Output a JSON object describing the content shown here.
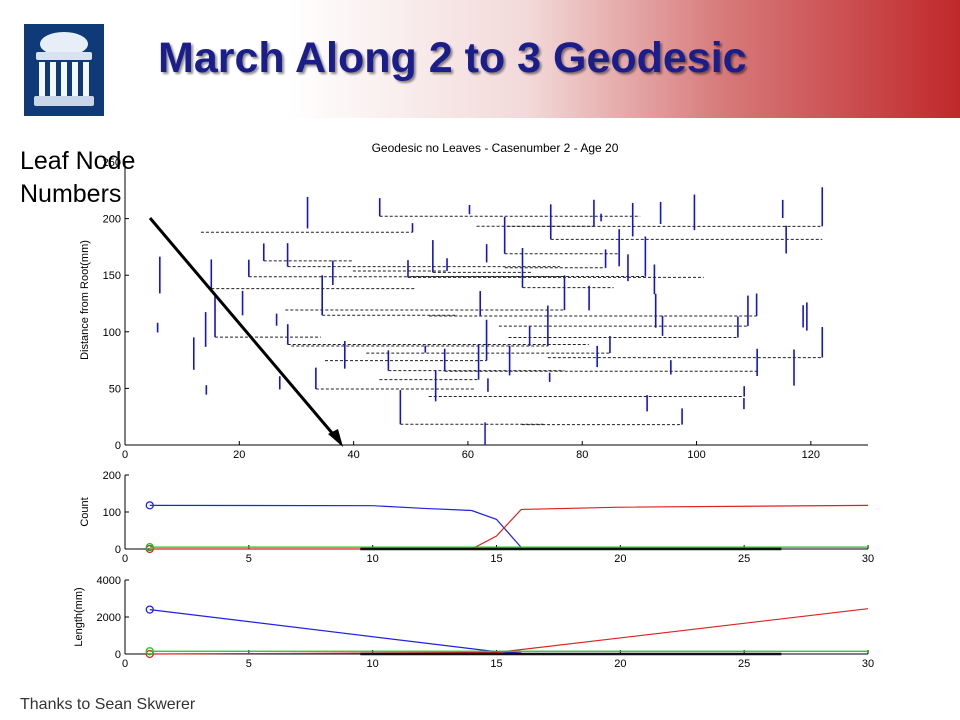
{
  "slide": {
    "title": "March Along 2 to 3 Geodesic",
    "annotation_line1": "Leaf Node",
    "annotation_line2": "Numbers",
    "credit": "Thanks to Sean Skwerer",
    "logo_icon": "old-well-icon",
    "colors": {
      "title": "#1a1d8c",
      "banner_red": "#c0282b"
    }
  },
  "chart_data": [
    {
      "type": "dendrogram",
      "title": "Geodesic no Leaves - Casenumber 2 - Age 20",
      "xlabel": "",
      "ylabel": "Distance from Root(mm)",
      "xlim": [
        0,
        130
      ],
      "ylim": [
        0,
        250
      ],
      "xticks": [
        0,
        20,
        40,
        60,
        80,
        100,
        120
      ],
      "yticks": [
        0,
        50,
        100,
        150,
        200,
        250
      ],
      "color": "#1515c8",
      "note": "tree drawn with solid vertical branches and dashed horizontal links"
    },
    {
      "type": "line",
      "ylabel": "Count",
      "xlim": [
        0,
        30
      ],
      "ylim": [
        0,
        200
      ],
      "xticks": [
        0,
        5,
        10,
        15,
        20,
        25,
        30
      ],
      "yticks": [
        0,
        100,
        200
      ],
      "series": [
        {
          "color": "#2222dd",
          "points": [
            [
              1,
              118
            ],
            [
              10,
              117
            ],
            [
              12,
              110
            ],
            [
              14,
              104
            ],
            [
              15,
              80
            ],
            [
              16,
              4
            ]
          ],
          "marker_at_start": true
        },
        {
          "color": "#dd2222",
          "points": [
            [
              1,
              0
            ],
            [
              14,
              0
            ],
            [
              15,
              35
            ],
            [
              16,
              107
            ],
            [
              20,
              113
            ],
            [
              30,
              118
            ]
          ],
          "marker_at_start": true
        },
        {
          "color": "#22bb22",
          "points": [
            [
              1,
              5
            ],
            [
              30,
              5
            ]
          ],
          "marker_at_start": true
        },
        {
          "color": "#111111",
          "points": [
            [
              9.5,
              0
            ],
            [
              26.5,
              0
            ]
          ],
          "marker_at_start": false
        }
      ]
    },
    {
      "type": "line",
      "ylabel": "Length(mm)",
      "xlim": [
        0,
        30
      ],
      "ylim": [
        0,
        4000
      ],
      "xticks": [
        0,
        5,
        10,
        15,
        20,
        25,
        30
      ],
      "yticks": [
        0,
        2000,
        4000
      ],
      "series": [
        {
          "color": "#2222dd",
          "points": [
            [
              1,
              2400
            ],
            [
              15,
              120
            ],
            [
              16,
              60
            ]
          ],
          "marker_at_start": true
        },
        {
          "color": "#dd2222",
          "points": [
            [
              1,
              0
            ],
            [
              15,
              80
            ],
            [
              30,
              2450
            ]
          ],
          "marker_at_start": true
        },
        {
          "color": "#22bb22",
          "points": [
            [
              1,
              150
            ],
            [
              30,
              150
            ]
          ],
          "marker_at_start": true
        },
        {
          "color": "#111111",
          "points": [
            [
              9.5,
              0
            ],
            [
              26.5,
              0
            ]
          ],
          "marker_at_start": false
        }
      ]
    }
  ]
}
